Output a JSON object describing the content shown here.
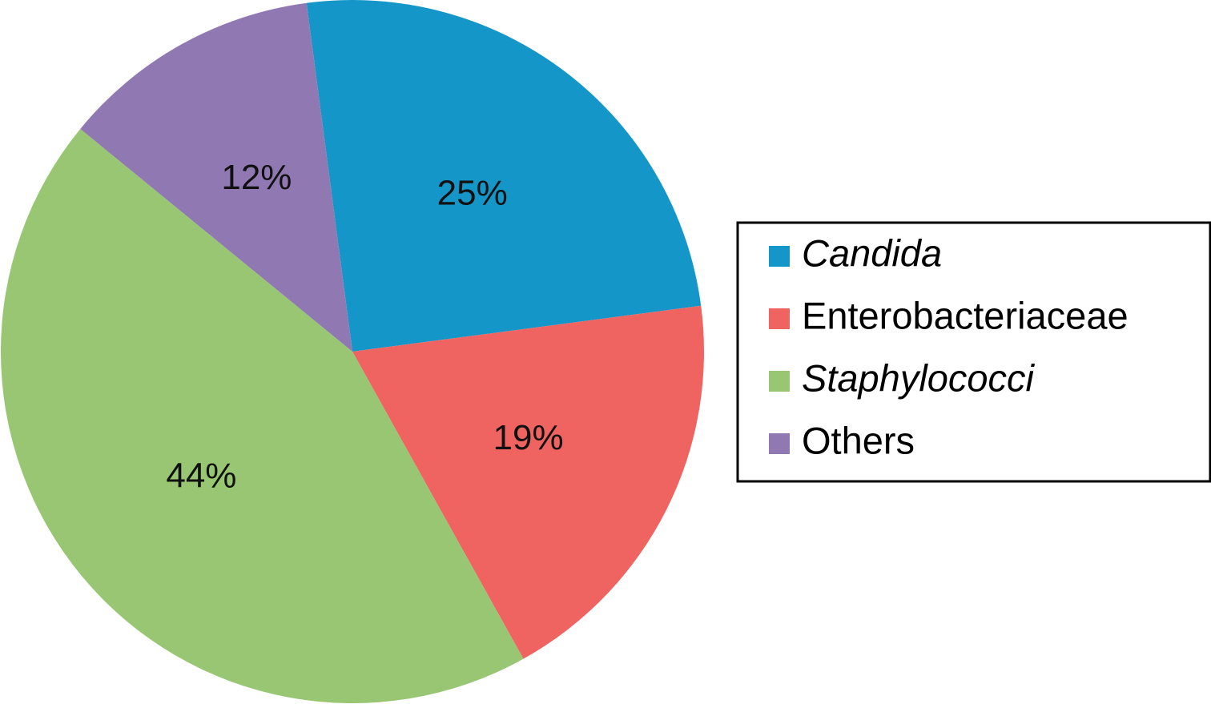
{
  "chart_data": {
    "type": "pie",
    "title": "",
    "legend_position": "right",
    "slices": [
      {
        "label": "Candida",
        "value": 25,
        "display": "25%",
        "color": "#1596c8",
        "italic": true
      },
      {
        "label": "Enterobacteriaceae",
        "value": 19,
        "display": "19%",
        "color": "#ef6461",
        "italic": false
      },
      {
        "label": "Staphylococci",
        "value": 44,
        "display": "44%",
        "color": "#98c673",
        "italic": true
      },
      {
        "label": "Others",
        "value": 12,
        "display": "12%",
        "color": "#9079b2",
        "italic": false
      }
    ]
  }
}
